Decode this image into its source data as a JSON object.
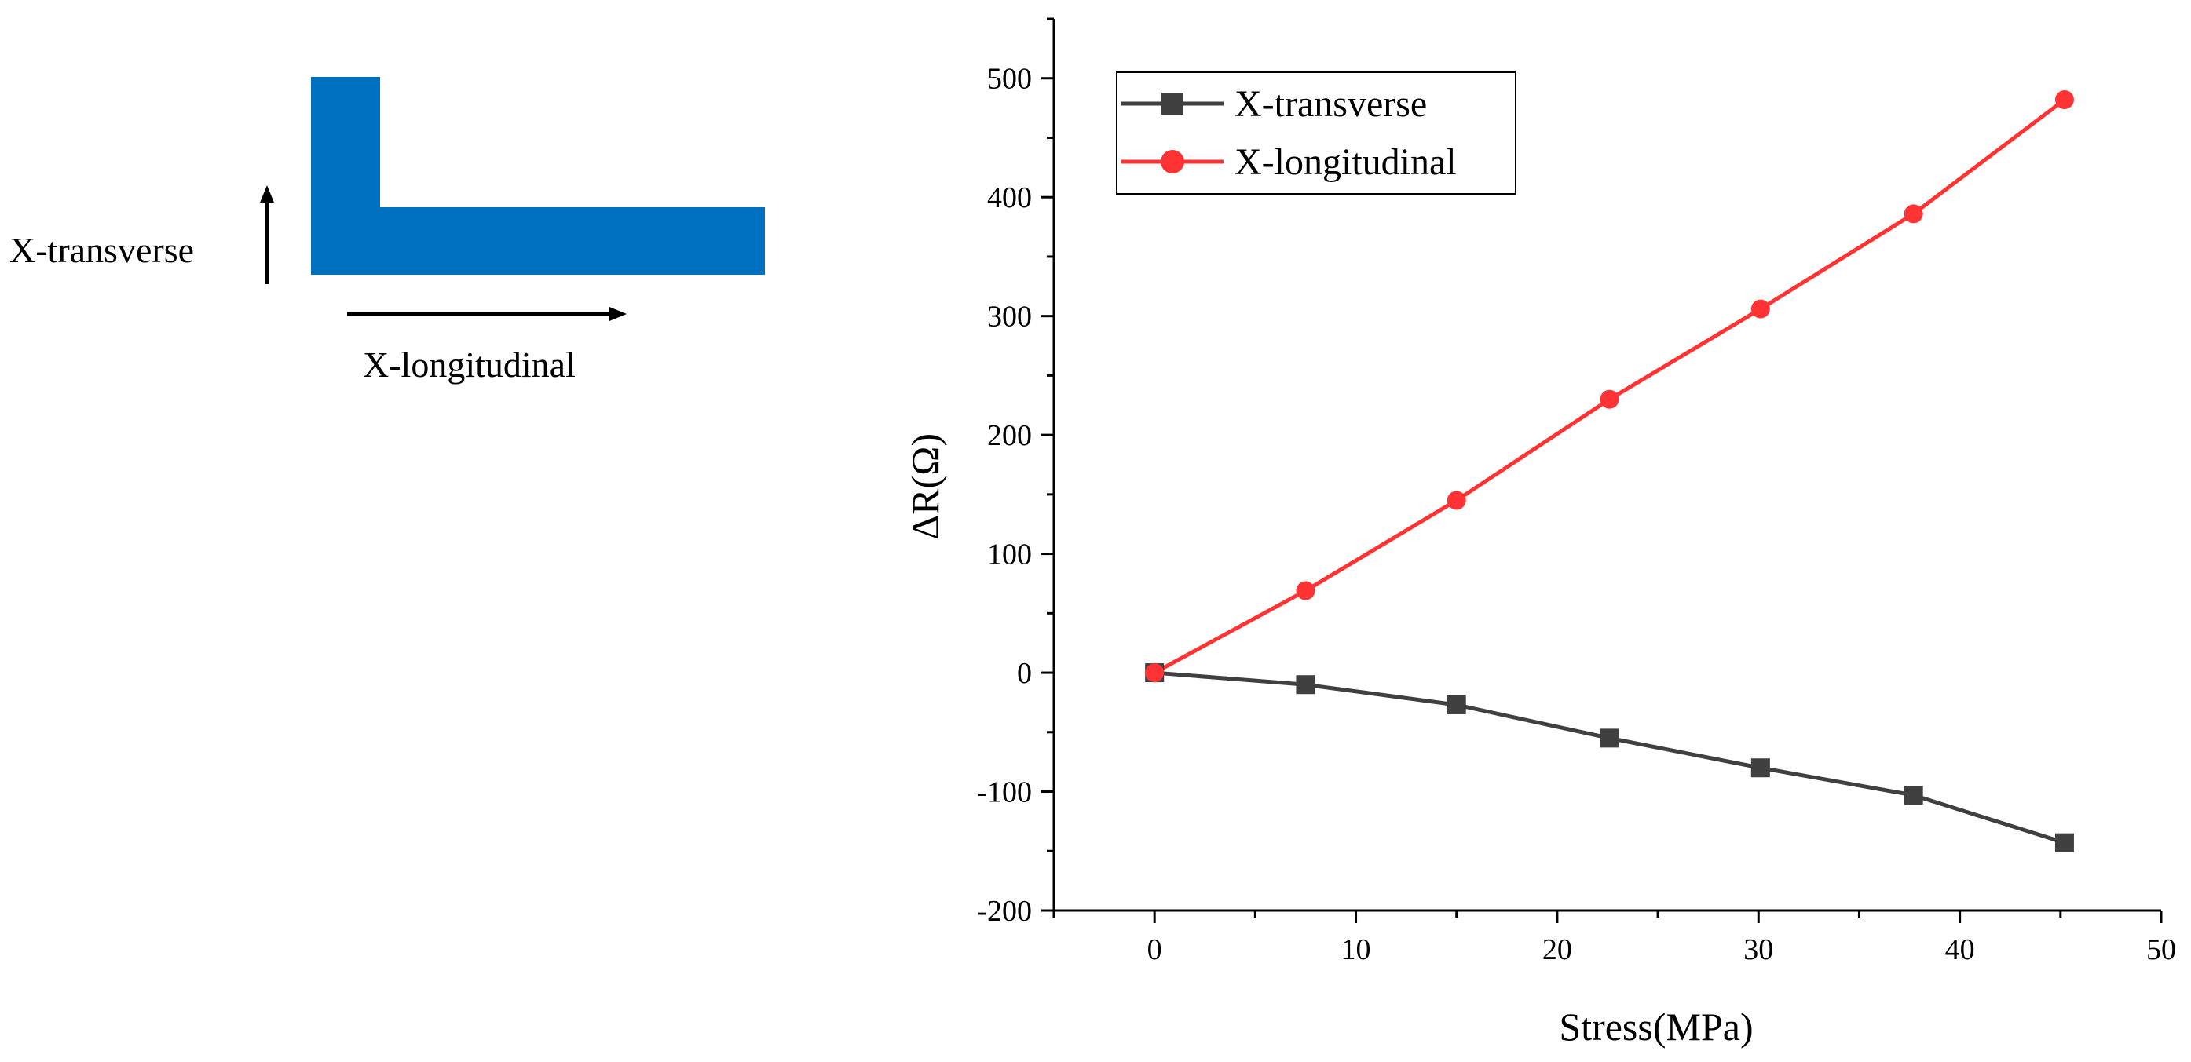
{
  "diagram": {
    "transverse_label": "X-transverse",
    "longitudinal_label": "X-longitudinal",
    "shape_color": "#0070C0"
  },
  "chart_data": {
    "type": "line",
    "xlabel": "Stress(MPa)",
    "ylabel": "ΔR(Ω)",
    "xlim": [
      -5,
      50
    ],
    "ylim": [
      -200,
      550
    ],
    "xticks": [
      0,
      10,
      20,
      30,
      40,
      50
    ],
    "yticks": [
      -200,
      -100,
      0,
      100,
      200,
      300,
      400,
      500
    ],
    "x": [
      0,
      7.5,
      15,
      22.6,
      30.1,
      37.7,
      45.2
    ],
    "series": [
      {
        "name": "X-transverse",
        "marker": "square",
        "color": "#404040",
        "values": [
          0,
          -10,
          -27,
          -55,
          -80,
          -103,
          -143
        ]
      },
      {
        "name": "X-longitudinal",
        "marker": "circle",
        "color": "#FF3333",
        "values": [
          0,
          69,
          145,
          230,
          306,
          386,
          482
        ]
      }
    ],
    "legend_position": "top-left"
  }
}
